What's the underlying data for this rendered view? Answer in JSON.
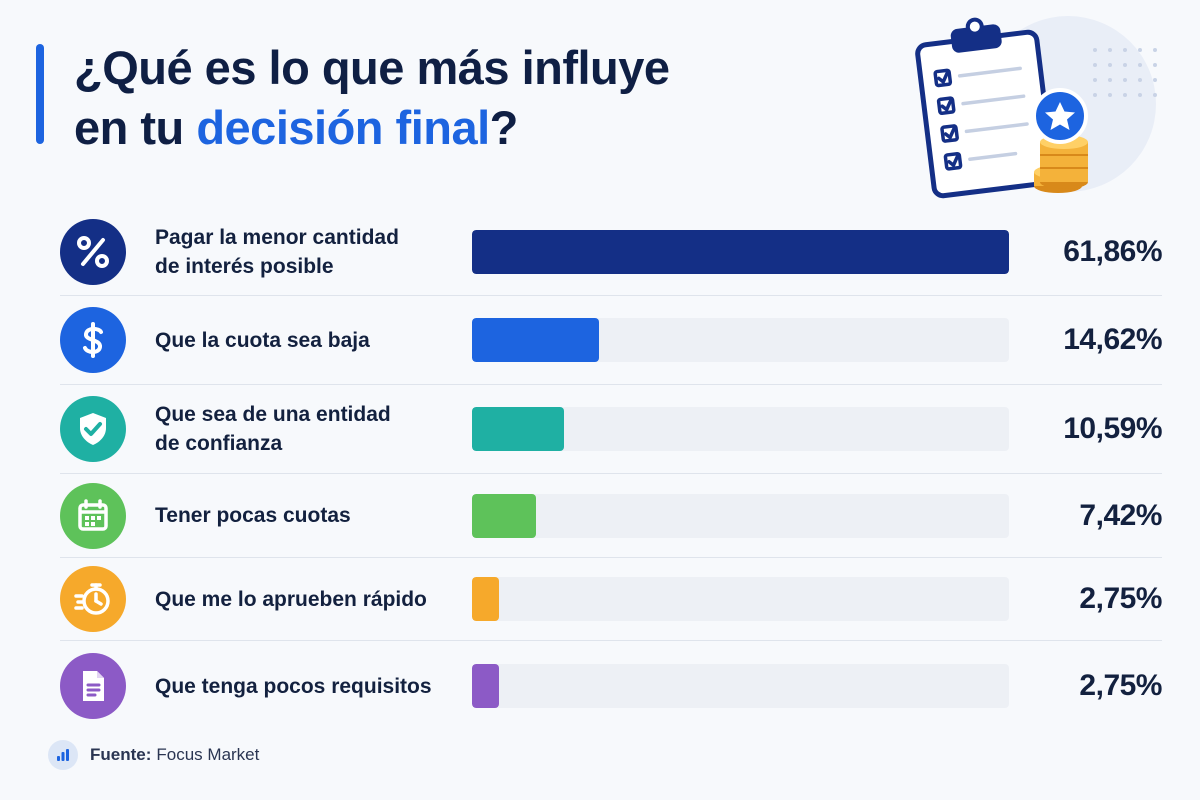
{
  "title": {
    "line1": "¿Qué es lo que más influye",
    "line2_plain": "en tu ",
    "line2_highlight": "decisión final",
    "line2_end": "?"
  },
  "colors": {
    "title": "#0f1f44",
    "highlight": "#1d64e0",
    "track": "#edf0f5"
  },
  "chart_data": {
    "type": "bar",
    "orientation": "horizontal",
    "categories": [
      "Pagar la menor cantidad de interés posible",
      "Que la cuota sea baja",
      "Que sea de una entidad de confianza",
      "Tener pocas cuotas",
      "Que me lo aprueben rápido",
      "Que tenga pocos requisitos"
    ],
    "values": [
      61.86,
      14.62,
      10.59,
      7.42,
      2.75,
      2.75
    ],
    "value_labels": [
      "61,86%",
      "14,62%",
      "10,59%",
      "7,42%",
      "2,75%",
      "2,75%"
    ],
    "xlim": [
      0,
      61.86
    ],
    "grid": false,
    "legend": "none"
  },
  "rows": [
    {
      "label_lines": [
        "Pagar la menor cantidad",
        "de interés posible"
      ],
      "icon": "percent-icon",
      "color": "#142f86"
    },
    {
      "label_lines": [
        "Que la cuota sea baja"
      ],
      "icon": "dollar-icon",
      "color": "#1d64e0"
    },
    {
      "label_lines": [
        "Que sea de una entidad",
        "de confianza"
      ],
      "icon": "shield-check-icon",
      "color": "#1fb0a3"
    },
    {
      "label_lines": [
        "Tener pocas cuotas"
      ],
      "icon": "calendar-icon",
      "color": "#5ec25a"
    },
    {
      "label_lines": [
        "Que me lo aprueben rápido"
      ],
      "icon": "stopwatch-icon",
      "color": "#f6a92b"
    },
    {
      "label_lines": [
        "Que tenga pocos requisitos"
      ],
      "icon": "document-icon",
      "color": "#8c5ac6"
    }
  ],
  "source": {
    "label": "Fuente:",
    "value": "Focus Market",
    "icon": "bar-chart-icon"
  }
}
